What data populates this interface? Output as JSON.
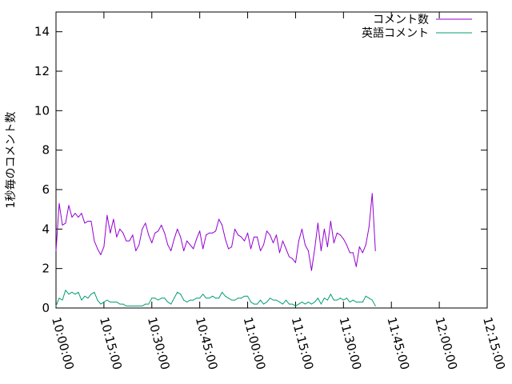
{
  "chart_data": {
    "type": "line",
    "ylabel": "1秒毎のコメント数",
    "xlabel": "",
    "ylim": [
      0,
      15
    ],
    "xlim": [
      "10:00:00",
      "12:15:00"
    ],
    "x_ticks": [
      "10:00:00",
      "10:15:00",
      "10:30:00",
      "10:45:00",
      "11:00:00",
      "11:15:00",
      "11:30:00",
      "11:45:00",
      "12:00:00",
      "12:15:00"
    ],
    "y_ticks": [
      0,
      2,
      4,
      6,
      8,
      10,
      12,
      14
    ],
    "x_interval_seconds": 60,
    "x_start": "10:00:00",
    "legend_position": "top-right",
    "grid": false,
    "series": [
      {
        "name": "コメント数",
        "color": "#9400d3",
        "values": [
          2.9,
          5.3,
          4.2,
          4.3,
          5.2,
          4.6,
          4.8,
          4.6,
          4.8,
          4.3,
          4.4,
          4.4,
          3.4,
          3.0,
          2.7,
          3.1,
          4.7,
          3.8,
          4.5,
          3.6,
          4.0,
          3.8,
          3.4,
          3.4,
          3.7,
          2.9,
          3.2,
          4.0,
          4.3,
          3.7,
          3.3,
          3.8,
          3.9,
          4.2,
          3.8,
          3.2,
          2.9,
          3.5,
          4.0,
          3.6,
          2.9,
          3.4,
          3.2,
          3.0,
          3.5,
          3.9,
          3.0,
          3.7,
          3.8,
          3.8,
          3.9,
          4.5,
          4.2,
          3.5,
          3.0,
          3.1,
          4.0,
          3.7,
          3.6,
          3.4,
          3.8,
          3.0,
          3.6,
          3.6,
          2.9,
          3.2,
          3.9,
          3.7,
          3.3,
          3.7,
          2.8,
          3.4,
          3.0,
          2.6,
          2.5,
          2.3,
          3.4,
          4.0,
          3.2,
          2.9,
          1.9,
          3.0,
          4.3,
          2.9,
          4.0,
          3.1,
          4.4,
          3.3,
          3.8,
          3.7,
          3.5,
          3.2,
          2.8,
          2.8,
          2.1,
          3.1,
          2.8,
          3.2,
          4.1,
          5.8,
          2.9
        ]
      },
      {
        "name": "英語コメント",
        "color": "#009e73",
        "values": [
          0.1,
          0.5,
          0.4,
          0.9,
          0.7,
          0.8,
          0.7,
          0.8,
          0.4,
          0.6,
          0.5,
          0.7,
          0.8,
          0.4,
          0.2,
          0.3,
          0.4,
          0.3,
          0.3,
          0.3,
          0.2,
          0.2,
          0.1,
          0.1,
          0.1,
          0.1,
          0.1,
          0.1,
          0.2,
          0.2,
          0.5,
          0.5,
          0.4,
          0.5,
          0.5,
          0.3,
          0.2,
          0.5,
          0.8,
          0.7,
          0.4,
          0.3,
          0.4,
          0.4,
          0.5,
          0.5,
          0.7,
          0.5,
          0.5,
          0.6,
          0.5,
          0.5,
          0.8,
          0.6,
          0.5,
          0.4,
          0.4,
          0.5,
          0.5,
          0.6,
          0.6,
          0.3,
          0.2,
          0.2,
          0.4,
          0.2,
          0.3,
          0.5,
          0.4,
          0.4,
          0.3,
          0.2,
          0.4,
          0.2,
          0.2,
          0.1,
          0.2,
          0.3,
          0.2,
          0.3,
          0.2,
          0.3,
          0.5,
          0.2,
          0.5,
          0.4,
          0.7,
          0.4,
          0.4,
          0.5,
          0.4,
          0.5,
          0.3,
          0.4,
          0.3,
          0.3,
          0.3,
          0.6,
          0.5,
          0.4,
          0.1
        ]
      }
    ]
  }
}
